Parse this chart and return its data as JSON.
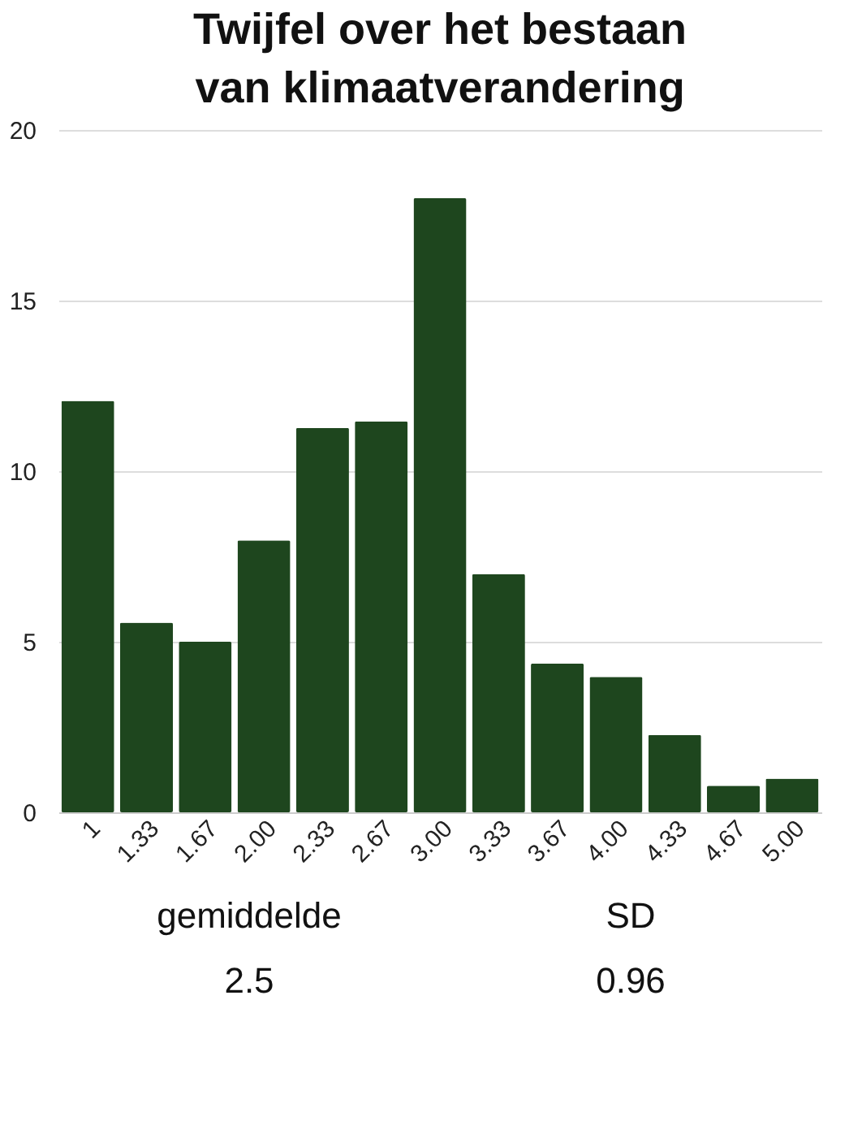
{
  "chart_data": {
    "type": "bar",
    "title": "Twijfel over het bestaan van klimaatverandering",
    "categories": [
      "1",
      "1.33",
      "1.67",
      "2.00",
      "2.33",
      "2.67",
      "3.00",
      "3.33",
      "3.67",
      "4.00",
      "4.33",
      "4.67",
      "5.00"
    ],
    "values": [
      12.06,
      5.56,
      5,
      7.97,
      11.27,
      11.46,
      18,
      6.98,
      4.36,
      3.97,
      2.27,
      0.78,
      0.99
    ],
    "color": "#1e461e",
    "ylim": [
      0,
      20
    ],
    "yticks": [
      0,
      5,
      10,
      15,
      20
    ],
    "grid": "y",
    "annotations": [
      "gemiddelde",
      "2.5",
      "SD",
      "0.96"
    ]
  }
}
